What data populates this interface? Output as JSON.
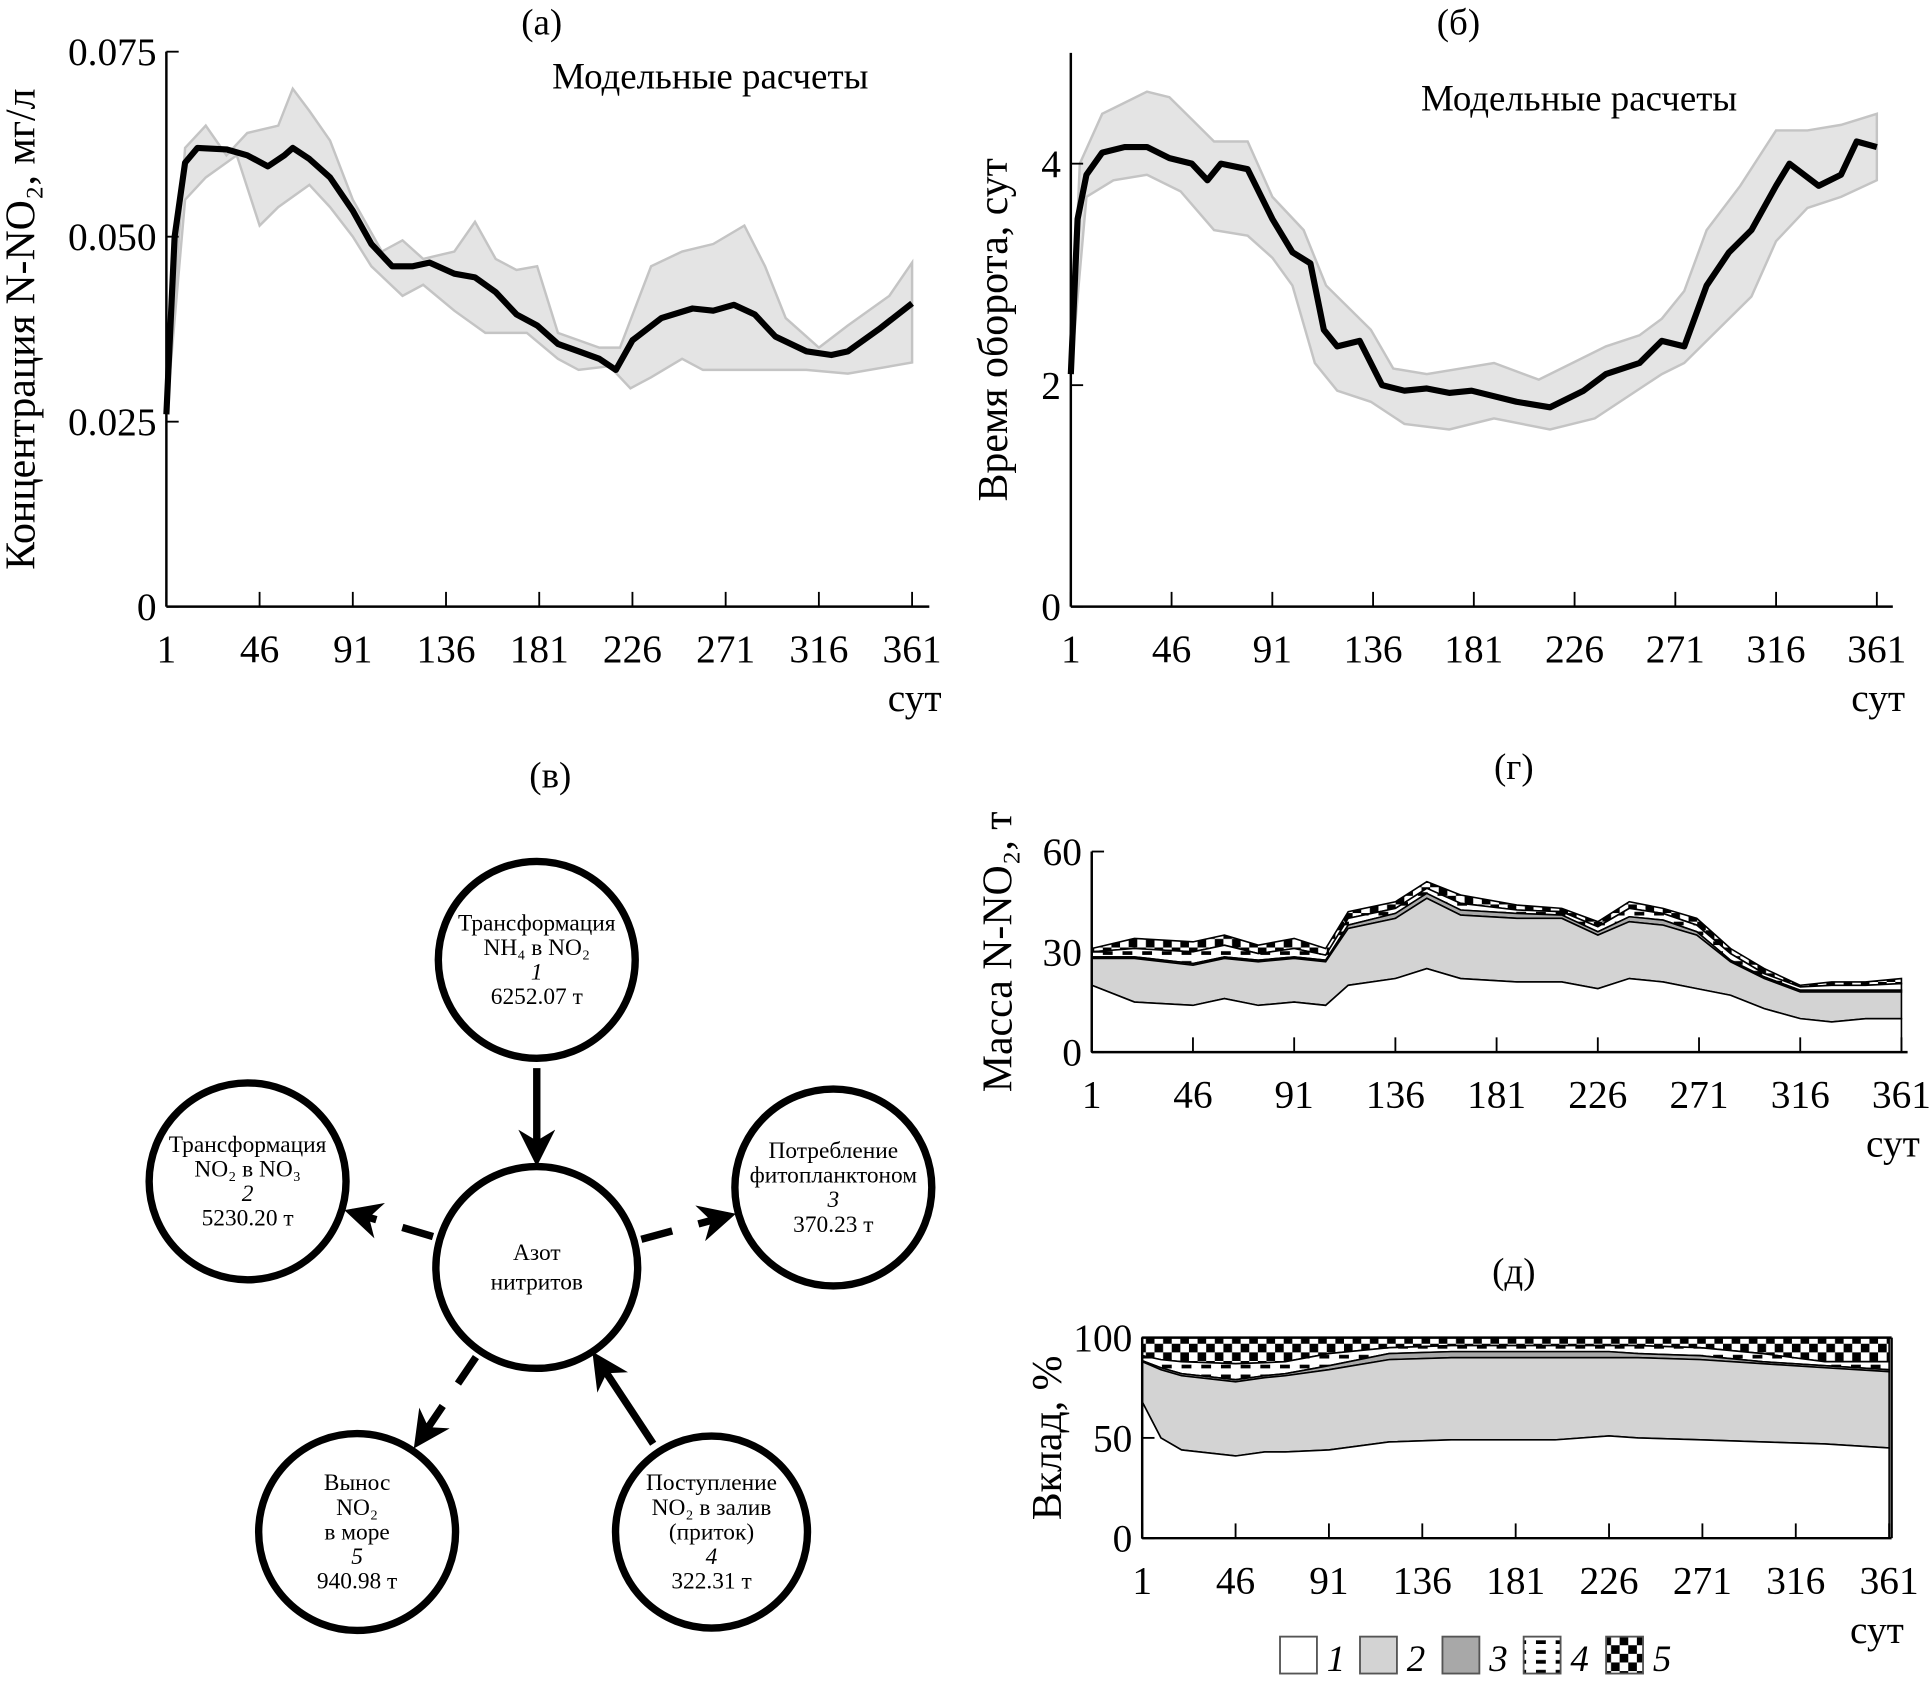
{
  "panel_labels": {
    "a": "(а)",
    "b": "(б)",
    "c": "(в)",
    "d": "(г)",
    "e": "(д)"
  },
  "colors": {
    "band": "#e4e4e4",
    "band_edge": "#c4c4c4",
    "line": "#000000",
    "layer1": "#ffffff",
    "layer2": "#d3d3d3",
    "layer3": "#a8a8a8"
  },
  "chart_data": [
    {
      "id": "a",
      "type": "area",
      "title": "",
      "annotation": "Модельные расчеты",
      "xlabel": "сут",
      "ylabel": "Концентрация N-NO₂, мг/л",
      "xlim": [
        1,
        361
      ],
      "ylim": [
        0,
        0.075
      ],
      "xticks": [
        1,
        46,
        91,
        136,
        181,
        226,
        271,
        316,
        361
      ],
      "yticks": [
        0,
        0.025,
        0.05,
        0.075
      ],
      "ytick_labels": [
        "0",
        "0.025",
        "0.050",
        "0.075"
      ],
      "grid": false,
      "band_upper": [
        [
          1,
          0.026
        ],
        [
          10,
          0.062
        ],
        [
          20,
          0.065
        ],
        [
          30,
          0.061
        ],
        [
          40,
          0.064
        ],
        [
          55,
          0.065
        ],
        [
          62,
          0.07
        ],
        [
          70,
          0.067
        ],
        [
          80,
          0.063
        ],
        [
          91,
          0.055
        ],
        [
          105,
          0.048
        ],
        [
          115,
          0.0495
        ],
        [
          125,
          0.047
        ],
        [
          140,
          0.048
        ],
        [
          150,
          0.052
        ],
        [
          160,
          0.047
        ],
        [
          170,
          0.0455
        ],
        [
          180,
          0.046
        ],
        [
          190,
          0.037
        ],
        [
          200,
          0.036
        ],
        [
          210,
          0.035
        ],
        [
          220,
          0.035
        ],
        [
          235,
          0.046
        ],
        [
          250,
          0.048
        ],
        [
          265,
          0.049
        ],
        [
          280,
          0.0515
        ],
        [
          290,
          0.046
        ],
        [
          300,
          0.039
        ],
        [
          316,
          0.035
        ],
        [
          330,
          0.038
        ],
        [
          350,
          0.042
        ],
        [
          361,
          0.0465
        ]
      ],
      "band_lower": [
        [
          1,
          0.026
        ],
        [
          10,
          0.055
        ],
        [
          20,
          0.058
        ],
        [
          35,
          0.061
        ],
        [
          46,
          0.0515
        ],
        [
          55,
          0.054
        ],
        [
          70,
          0.057
        ],
        [
          80,
          0.054
        ],
        [
          91,
          0.05
        ],
        [
          100,
          0.046
        ],
        [
          115,
          0.042
        ],
        [
          125,
          0.0435
        ],
        [
          140,
          0.04
        ],
        [
          155,
          0.037
        ],
        [
          175,
          0.037
        ],
        [
          190,
          0.0335
        ],
        [
          200,
          0.032
        ],
        [
          215,
          0.0325
        ],
        [
          225,
          0.0295
        ],
        [
          235,
          0.031
        ],
        [
          250,
          0.0335
        ],
        [
          260,
          0.032
        ],
        [
          280,
          0.032
        ],
        [
          310,
          0.032
        ],
        [
          330,
          0.0315
        ],
        [
          361,
          0.033
        ]
      ],
      "mean": [
        [
          1,
          0.026
        ],
        [
          5,
          0.05
        ],
        [
          10,
          0.06
        ],
        [
          16,
          0.062
        ],
        [
          30,
          0.0618
        ],
        [
          40,
          0.061
        ],
        [
          50,
          0.0595
        ],
        [
          58,
          0.061
        ],
        [
          62,
          0.062
        ],
        [
          70,
          0.0605
        ],
        [
          80,
          0.058
        ],
        [
          91,
          0.0535
        ],
        [
          100,
          0.049
        ],
        [
          110,
          0.046
        ],
        [
          120,
          0.046
        ],
        [
          128,
          0.0465
        ],
        [
          140,
          0.045
        ],
        [
          150,
          0.0445
        ],
        [
          160,
          0.0425
        ],
        [
          170,
          0.0395
        ],
        [
          180,
          0.038
        ],
        [
          190,
          0.0355
        ],
        [
          200,
          0.0345
        ],
        [
          210,
          0.0335
        ],
        [
          218,
          0.032
        ],
        [
          226,
          0.036
        ],
        [
          240,
          0.039
        ],
        [
          255,
          0.0403
        ],
        [
          265,
          0.04
        ],
        [
          275,
          0.0408
        ],
        [
          285,
          0.0395
        ],
        [
          295,
          0.0365
        ],
        [
          310,
          0.0345
        ],
        [
          322,
          0.034
        ],
        [
          330,
          0.0345
        ],
        [
          345,
          0.0375
        ],
        [
          361,
          0.041
        ]
      ]
    },
    {
      "id": "b",
      "type": "area",
      "title": "",
      "annotation": "Модельные расчеты",
      "xlabel": "сут",
      "ylabel": "Время оборота, сут",
      "xlim": [
        1,
        361
      ],
      "ylim": [
        0,
        5
      ],
      "xticks": [
        1,
        46,
        91,
        136,
        181,
        226,
        271,
        316,
        361
      ],
      "yticks": [
        0,
        2,
        4
      ],
      "ytick_labels": [
        "0",
        "2",
        "4"
      ],
      "grid": false,
      "band_upper": [
        [
          1,
          2.1
        ],
        [
          5,
          4.0
        ],
        [
          15,
          4.45
        ],
        [
          25,
          4.55
        ],
        [
          35,
          4.65
        ],
        [
          45,
          4.6
        ],
        [
          55,
          4.4
        ],
        [
          65,
          4.2
        ],
        [
          80,
          4.2
        ],
        [
          91,
          3.7
        ],
        [
          105,
          3.4
        ],
        [
          115,
          2.9
        ],
        [
          125,
          2.7
        ],
        [
          135,
          2.5
        ],
        [
          145,
          2.15
        ],
        [
          160,
          2.1
        ],
        [
          175,
          2.15
        ],
        [
          190,
          2.2
        ],
        [
          210,
          2.05
        ],
        [
          225,
          2.2
        ],
        [
          240,
          2.35
        ],
        [
          255,
          2.45
        ],
        [
          265,
          2.6
        ],
        [
          275,
          2.85
        ],
        [
          285,
          3.4
        ],
        [
          300,
          3.8
        ],
        [
          316,
          4.3
        ],
        [
          330,
          4.3
        ],
        [
          345,
          4.35
        ],
        [
          361,
          4.45
        ]
      ],
      "band_lower": [
        [
          1,
          2.1
        ],
        [
          8,
          3.7
        ],
        [
          20,
          3.85
        ],
        [
          35,
          3.9
        ],
        [
          50,
          3.75
        ],
        [
          65,
          3.4
        ],
        [
          80,
          3.35
        ],
        [
          91,
          3.15
        ],
        [
          100,
          2.9
        ],
        [
          110,
          2.2
        ],
        [
          120,
          1.95
        ],
        [
          135,
          1.85
        ],
        [
          150,
          1.65
        ],
        [
          170,
          1.6
        ],
        [
          190,
          1.7
        ],
        [
          215,
          1.6
        ],
        [
          235,
          1.7
        ],
        [
          250,
          1.9
        ],
        [
          265,
          2.1
        ],
        [
          275,
          2.2
        ],
        [
          290,
          2.5
        ],
        [
          305,
          2.8
        ],
        [
          316,
          3.3
        ],
        [
          330,
          3.6
        ],
        [
          345,
          3.7
        ],
        [
          361,
          3.85
        ]
      ],
      "mean": [
        [
          1,
          2.1
        ],
        [
          4,
          3.5
        ],
        [
          8,
          3.9
        ],
        [
          15,
          4.1
        ],
        [
          25,
          4.15
        ],
        [
          35,
          4.15
        ],
        [
          45,
          4.05
        ],
        [
          55,
          4.0
        ],
        [
          62,
          3.85
        ],
        [
          68,
          4.0
        ],
        [
          80,
          3.95
        ],
        [
          91,
          3.5
        ],
        [
          100,
          3.2
        ],
        [
          108,
          3.1
        ],
        [
          114,
          2.5
        ],
        [
          120,
          2.35
        ],
        [
          130,
          2.4
        ],
        [
          140,
          2.0
        ],
        [
          150,
          1.95
        ],
        [
          160,
          1.97
        ],
        [
          170,
          1.93
        ],
        [
          180,
          1.95
        ],
        [
          200,
          1.85
        ],
        [
          215,
          1.8
        ],
        [
          230,
          1.95
        ],
        [
          240,
          2.1
        ],
        [
          255,
          2.2
        ],
        [
          265,
          2.4
        ],
        [
          275,
          2.35
        ],
        [
          285,
          2.9
        ],
        [
          295,
          3.2
        ],
        [
          305,
          3.4
        ],
        [
          316,
          3.8
        ],
        [
          322,
          4.0
        ],
        [
          335,
          3.8
        ],
        [
          345,
          3.9
        ],
        [
          352,
          4.2
        ],
        [
          361,
          4.15
        ]
      ]
    },
    {
      "id": "d",
      "type": "area",
      "stacked": true,
      "title": "",
      "xlabel": "сут",
      "ylabel": "Масса N-NO₂, т",
      "xlim": [
        1,
        361
      ],
      "ylim": [
        0,
        60
      ],
      "xticks": [
        1,
        46,
        91,
        136,
        181,
        226,
        271,
        316,
        361
      ],
      "yticks": [
        0,
        30,
        60
      ],
      "ytick_labels": [
        "0",
        "30",
        "60"
      ],
      "grid": false,
      "x": [
        1,
        20,
        46,
        60,
        75,
        91,
        105,
        115,
        136,
        150,
        165,
        190,
        210,
        226,
        240,
        255,
        270,
        285,
        300,
        316,
        330,
        345,
        361
      ],
      "series_tops": [
        {
          "legend": "1",
          "values": [
            20,
            15,
            14,
            16,
            14,
            15,
            14,
            20,
            22,
            25,
            22,
            21,
            21,
            19,
            22,
            21,
            19,
            17,
            13,
            10,
            9,
            10,
            10
          ]
        },
        {
          "legend": "2",
          "values": [
            28,
            28,
            26,
            28,
            27,
            28,
            27,
            37,
            40,
            46,
            41,
            40,
            40,
            35,
            39,
            38,
            35,
            27,
            22,
            18,
            18,
            18,
            18
          ]
        },
        {
          "legend": "3",
          "values": [
            28.5,
            28.5,
            26.5,
            28.5,
            27.5,
            28.5,
            27.5,
            38,
            41.5,
            47.5,
            42.5,
            41.5,
            41,
            36,
            40.5,
            39.5,
            36,
            27.5,
            22.5,
            18.5,
            18.5,
            18.5,
            18.5
          ]
        },
        {
          "legend": "4",
          "values": [
            30,
            31,
            30,
            32,
            29.5,
            31,
            29,
            40,
            43,
            49,
            44.5,
            42.5,
            42,
            37.5,
            43,
            41.5,
            38,
            29.5,
            23.5,
            19.5,
            20,
            20,
            20.5
          ]
        },
        {
          "legend": "5",
          "values": [
            31,
            34,
            33,
            35,
            32,
            34,
            31,
            42,
            45,
            51,
            47,
            44,
            43,
            39,
            45,
            43,
            40,
            31,
            25,
            20,
            21,
            21,
            22
          ]
        }
      ]
    },
    {
      "id": "e",
      "type": "area",
      "stacked": true,
      "title": "",
      "xlabel": "сут",
      "ylabel": "Вклад, %",
      "xlim": [
        1,
        361
      ],
      "ylim": [
        0,
        100
      ],
      "xticks": [
        1,
        46,
        91,
        136,
        181,
        226,
        271,
        316,
        361
      ],
      "yticks": [
        0,
        50,
        100
      ],
      "ytick_labels": [
        "0",
        "50",
        "100"
      ],
      "grid": false,
      "x": [
        1,
        10,
        20,
        46,
        60,
        70,
        91,
        120,
        150,
        200,
        226,
        240,
        270,
        300,
        330,
        361
      ],
      "series_tops": [
        {
          "legend": "1",
          "values": [
            68,
            50,
            44,
            41,
            43,
            43,
            44,
            48,
            49,
            49,
            51,
            50,
            49,
            48,
            47,
            45
          ]
        },
        {
          "legend": "2",
          "values": [
            88,
            84,
            81,
            78,
            80,
            81,
            84,
            89,
            90,
            90,
            90,
            90,
            89,
            87,
            85,
            83
          ]
        },
        {
          "legend": "3",
          "values": [
            88.5,
            85,
            82,
            79,
            81,
            82,
            86,
            92,
            93,
            93,
            93,
            92,
            91,
            88,
            86,
            84
          ]
        },
        {
          "legend": "4",
          "values": [
            91,
            89,
            88,
            87,
            87.5,
            88,
            92,
            95,
            96,
            96,
            96,
            96,
            95,
            92,
            88,
            88
          ]
        },
        {
          "legend": "5",
          "values": [
            100,
            100,
            100,
            100,
            100,
            100,
            100,
            100,
            100,
            100,
            100,
            100,
            100,
            100,
            100,
            100
          ]
        }
      ],
      "legend_items": [
        "1",
        "2",
        "3",
        "4",
        "5"
      ],
      "legend_placement": "bottom"
    }
  ],
  "diagram": {
    "center": {
      "lines": [
        "Азот",
        "нитритов"
      ]
    },
    "nodes": [
      {
        "id": "n1",
        "lines": [
          "Трансформация",
          "NH₄ в NO₂"
        ],
        "index": "1",
        "value": "6252.07 т",
        "direction": "in",
        "style": "solid"
      },
      {
        "id": "n2",
        "lines": [
          "Трансформация",
          "NO₂ в NO₃"
        ],
        "index": "2",
        "value": "5230.20 т",
        "direction": "out",
        "style": "dashed"
      },
      {
        "id": "n3",
        "lines": [
          "Потребление",
          "фитопланктоном"
        ],
        "index": "3",
        "value": "370.23 т",
        "direction": "out",
        "style": "dashed"
      },
      {
        "id": "n4",
        "lines": [
          "Поступление",
          "NO₂ в залив",
          "(приток)"
        ],
        "index": "4",
        "value": "322.31 т",
        "direction": "in",
        "style": "solid"
      },
      {
        "id": "n5",
        "lines": [
          "Вынос",
          "NO₂",
          "в море"
        ],
        "index": "5",
        "value": "940.98 т",
        "direction": "out",
        "style": "dashed"
      }
    ]
  }
}
